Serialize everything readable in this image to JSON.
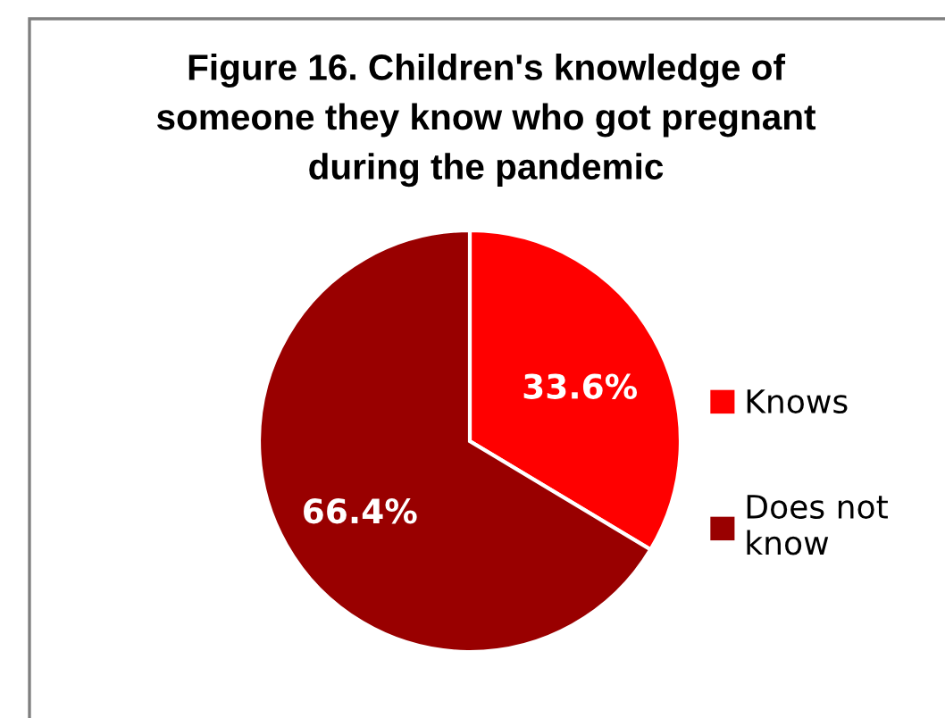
{
  "chart_data": {
    "type": "pie",
    "title": "Figure 16. Children's knowledge of someone they know who got pregnant during the pandemic",
    "categories": [
      "Knows",
      "Does not know"
    ],
    "values": [
      33.6,
      66.4
    ],
    "colors": [
      "#ff0000",
      "#990000"
    ],
    "value_labels": [
      "33.6%",
      "66.4%"
    ],
    "legend": "right"
  }
}
